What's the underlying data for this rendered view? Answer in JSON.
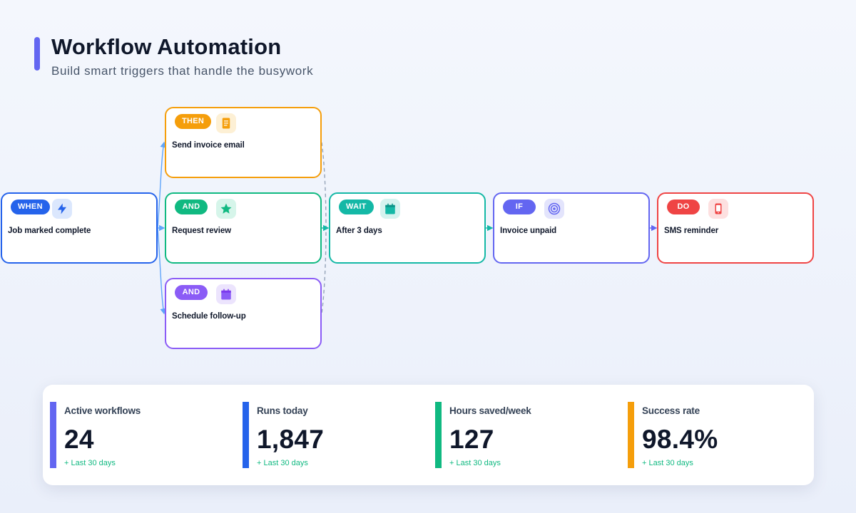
{
  "header": {
    "title": "Workflow Automation",
    "subtitle": "Build smart triggers that handle the busywork"
  },
  "colors": {
    "accent": "#6366f1",
    "when": "#2563eb",
    "then": "#f59e0b",
    "and_review": "#10b981",
    "and_schedule": "#8b5cf6",
    "wait": "#14b8a6",
    "if": "#6366f1",
    "do": "#ef4444"
  },
  "nodes": {
    "when": {
      "tag": "WHEN",
      "label": "Job marked complete",
      "icon": "lightning-icon"
    },
    "then": {
      "tag": "THEN",
      "label": "Send invoice email",
      "icon": "document-icon"
    },
    "and_review": {
      "tag": "AND",
      "label": "Request review",
      "icon": "star-icon"
    },
    "and_schedule": {
      "tag": "AND",
      "label": "Schedule follow-up",
      "icon": "calendar-icon"
    },
    "wait": {
      "tag": "WAIT",
      "label": "After 3 days",
      "icon": "calendar-icon"
    },
    "if": {
      "tag": "IF",
      "label": "Invoice unpaid",
      "icon": "target-icon"
    },
    "do": {
      "tag": "DO",
      "label": "SMS reminder",
      "icon": "phone-icon"
    }
  },
  "stats": [
    {
      "label": "Active workflows",
      "value": "24",
      "delta": "+ Last 30 days"
    },
    {
      "label": "Runs today",
      "value": "1,847",
      "delta": "+ Last 30 days"
    },
    {
      "label": "Hours saved/week",
      "value": "127",
      "delta": "+ Last 30 days"
    },
    {
      "label": "Success rate",
      "value": "98.4%",
      "delta": "+ Last 30 days"
    }
  ]
}
